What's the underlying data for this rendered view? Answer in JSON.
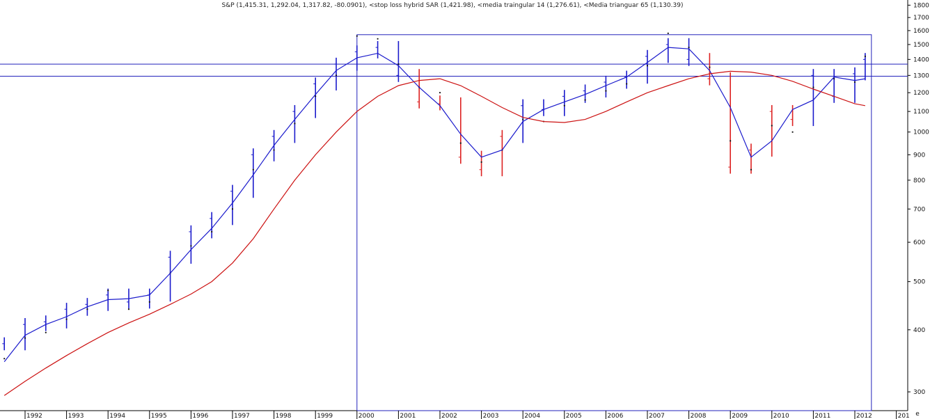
{
  "chart_data": {
    "type": "line",
    "title": "S&P (1,415.31, 1,292.04, 1,317.82, -80.0901), <stop loss hybrid SAR (1,421.98), <media traingular 14 (1,276.61), <Media trianguar 65 (1,130.39)",
    "xlabel": "",
    "ylabel": "",
    "y_scale": "log",
    "ylim": [
      275,
      1820
    ],
    "x_ticks": [
      "1992",
      "1993",
      "1994",
      "1995",
      "1996",
      "1997",
      "1998",
      "1999",
      "2000",
      "2001",
      "2002",
      "2003",
      "2004",
      "2005",
      "2006",
      "2007",
      "2008",
      "2009",
      "2010",
      "2011",
      "2012",
      "201"
    ],
    "y_ticks": [
      300,
      400,
      500,
      600,
      700,
      800,
      900,
      1000,
      1100,
      1200,
      1300,
      1400,
      1500,
      1600,
      1700,
      1800
    ],
    "corner_label": "e",
    "horizontal_lines": [
      1370,
      1295
    ],
    "highlight_box": {
      "x_start": 2000.0,
      "x_end": 2012.4,
      "y_low": 275,
      "y_high": 1570
    },
    "series": [
      {
        "name": "S&P",
        "style": "bars",
        "colors": {
          "up": "#1a1acc",
          "down": "#dd2222"
        },
        "dates": [
          1991.5,
          1992.0,
          1992.5,
          1993.0,
          1993.5,
          1994.0,
          1994.5,
          1995.0,
          1995.5,
          1996.0,
          1996.5,
          1997.0,
          1997.5,
          1998.0,
          1998.5,
          1999.0,
          1999.5,
          2000.0,
          2000.5,
          2001.0,
          2001.5,
          2002.0,
          2002.5,
          2003.0,
          2003.5,
          2004.0,
          2004.5,
          2005.0,
          2005.5,
          2006.0,
          2006.5,
          2007.0,
          2007.5,
          2008.0,
          2008.5,
          2009.0,
          2009.5,
          2010.0,
          2010.5,
          2011.0,
          2011.5,
          2012.0,
          2012.25
        ],
        "values": [
          375,
          410,
          415,
          440,
          450,
          470,
          455,
          470,
          560,
          630,
          670,
          760,
          900,
          980,
          1100,
          1250,
          1370,
          1450,
          1480,
          1300,
          1150,
          1140,
          890,
          840,
          980,
          1130,
          1110,
          1180,
          1210,
          1260,
          1290,
          1420,
          1500,
          1400,
          1280,
          850,
          920,
          1100,
          1060,
          1300,
          1180,
          1310,
          1400
        ]
      },
      {
        "name": "stop loss hybrid SAR",
        "style": "dots",
        "color": "#111111",
        "dates": [
          1991.5,
          1992.0,
          1992.5,
          1993.0,
          1993.5,
          1994.0,
          1994.5,
          1995.0,
          1995.5,
          1996.0,
          1996.5,
          1997.0,
          1997.5,
          1998.0,
          1998.5,
          1999.0,
          1999.5,
          2000.0,
          2000.5,
          2001.0,
          2001.5,
          2002.0,
          2002.5,
          2003.0,
          2003.5,
          2004.0,
          2004.5,
          2005.0,
          2005.5,
          2006.0,
          2006.5,
          2007.0,
          2007.5,
          2008.0,
          2008.5,
          2009.0,
          2009.5,
          2010.0,
          2010.5,
          2011.0,
          2011.5,
          2012.0,
          2012.25
        ],
        "values": [
          350,
          385,
          395,
          420,
          440,
          480,
          440,
          455,
          520,
          590,
          630,
          700,
          840,
          920,
          1040,
          1180,
          1300,
          1560,
          1540,
          1370,
          1230,
          1200,
          950,
          870,
          920,
          1060,
          1050,
          1130,
          1160,
          1210,
          1250,
          1360,
          1580,
          1480,
          1350,
          960,
          840,
          1030,
          1000,
          1230,
          1280,
          1260,
          1420
        ]
      },
      {
        "name": "media traingular 14",
        "style": "line",
        "color": "#1a1acc",
        "dates": [
          1991.5,
          1992.0,
          1992.5,
          1993.0,
          1993.5,
          1994.0,
          1994.5,
          1995.0,
          1995.5,
          1996.0,
          1996.5,
          1997.0,
          1997.5,
          1998.0,
          1998.5,
          1999.0,
          1999.5,
          2000.0,
          2000.5,
          2001.0,
          2001.5,
          2002.0,
          2002.5,
          2003.0,
          2003.5,
          2004.0,
          2004.5,
          2005.0,
          2005.5,
          2006.0,
          2006.5,
          2007.0,
          2007.5,
          2008.0,
          2008.5,
          2009.0,
          2009.5,
          2010.0,
          2010.5,
          2011.0,
          2011.5,
          2012.0,
          2012.25
        ],
        "values": [
          345,
          390,
          410,
          425,
          445,
          460,
          462,
          470,
          520,
          580,
          640,
          720,
          820,
          940,
          1060,
          1190,
          1330,
          1410,
          1440,
          1360,
          1230,
          1130,
          990,
          890,
          920,
          1050,
          1110,
          1150,
          1190,
          1240,
          1290,
          1380,
          1480,
          1470,
          1330,
          1120,
          890,
          960,
          1110,
          1160,
          1290,
          1270,
          1280
        ]
      },
      {
        "name": "Media trianguar 65",
        "style": "line",
        "color": "#cc1111",
        "dates": [
          1991.5,
          1992.0,
          1992.5,
          1993.0,
          1993.5,
          1994.0,
          1994.5,
          1995.0,
          1995.5,
          1996.0,
          1996.5,
          1997.0,
          1997.5,
          1998.0,
          1998.5,
          1999.0,
          1999.5,
          2000.0,
          2000.5,
          2001.0,
          2001.5,
          2002.0,
          2002.5,
          2003.0,
          2003.5,
          2004.0,
          2004.5,
          2005.0,
          2005.5,
          2006.0,
          2006.5,
          2007.0,
          2007.5,
          2008.0,
          2008.5,
          2009.0,
          2009.5,
          2010.0,
          2010.5,
          2011.0,
          2011.5,
          2012.0,
          2012.25
        ],
        "values": [
          295,
          315,
          335,
          355,
          375,
          395,
          413,
          430,
          450,
          472,
          500,
          545,
          610,
          700,
          800,
          900,
          1000,
          1100,
          1180,
          1240,
          1270,
          1280,
          1240,
          1180,
          1120,
          1070,
          1050,
          1045,
          1060,
          1100,
          1150,
          1200,
          1240,
          1280,
          1310,
          1325,
          1320,
          1300,
          1265,
          1220,
          1180,
          1140,
          1130
        ]
      }
    ]
  }
}
